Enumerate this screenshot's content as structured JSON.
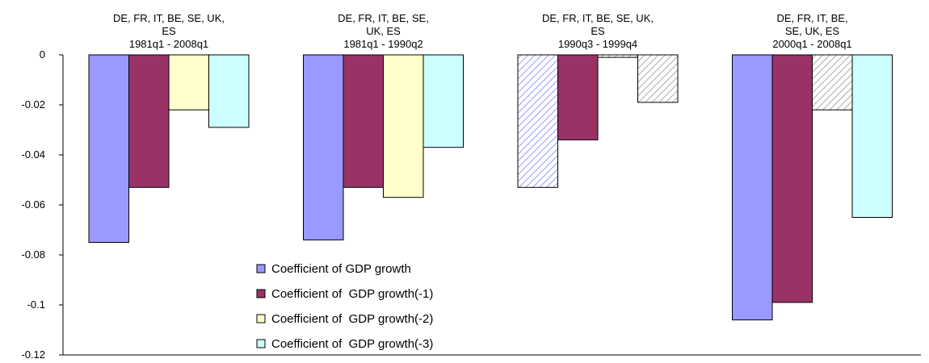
{
  "chart_data": {
    "type": "bar",
    "categories": [
      "DE, FR, IT, BE, SE, UK,\nES\n1981q1 - 2008q1",
      "DE, FR, IT, BE, SE,\nUK, ES\n1981q1 - 1990q2",
      "DE, FR, IT, BE, SE, UK,\nES\n1990q3 - 1999q4",
      "DE, FR, IT, BE,\nSE, UK, ES\n2000q1 - 2008q1"
    ],
    "series": [
      {
        "name": "Coefficient of GDP growth",
        "color": "#9999ff",
        "values": [
          -0.075,
          -0.074,
          -0.053,
          -0.106
        ],
        "hatched": [
          false,
          false,
          true,
          false
        ]
      },
      {
        "name": "Coefficient of  GDP growth(-1)",
        "color": "#993366",
        "values": [
          -0.053,
          -0.053,
          -0.034,
          -0.099
        ],
        "hatched": [
          false,
          false,
          false,
          false
        ]
      },
      {
        "name": "Coefficient of  GDP growth(-2)",
        "color": "#ffffcc",
        "values": [
          -0.022,
          -0.057,
          -0.001,
          -0.022
        ],
        "hatched": [
          false,
          false,
          true,
          true
        ]
      },
      {
        "name": "Coefficient of  GDP growth(-3)",
        "color": "#ccffff",
        "values": [
          -0.029,
          -0.037,
          -0.019,
          -0.065
        ],
        "hatched": [
          false,
          false,
          true,
          false
        ]
      }
    ],
    "ylim": [
      -0.12,
      0
    ],
    "yticks": [
      0,
      -0.02,
      -0.04,
      -0.06,
      -0.08,
      -0.1,
      -0.12
    ]
  }
}
